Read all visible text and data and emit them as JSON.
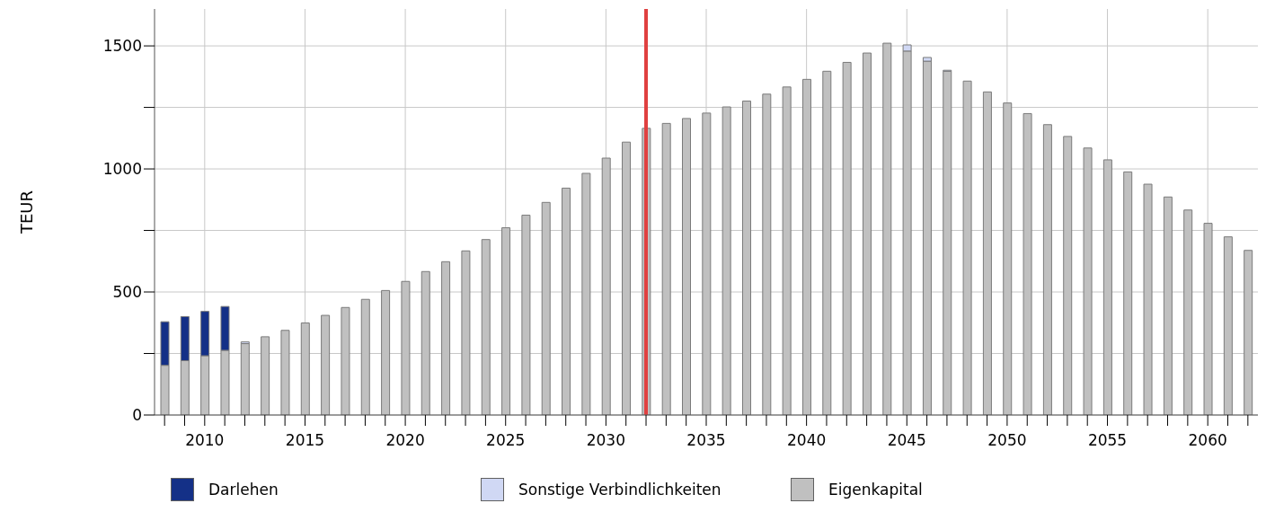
{
  "chart_data": {
    "type": "bar",
    "stacked": true,
    "ylabel": "TEUR",
    "x": [
      2008,
      2009,
      2010,
      2011,
      2012,
      2013,
      2014,
      2015,
      2016,
      2017,
      2018,
      2019,
      2020,
      2021,
      2022,
      2023,
      2024,
      2025,
      2026,
      2027,
      2028,
      2029,
      2030,
      2031,
      2032,
      2033,
      2034,
      2035,
      2036,
      2037,
      2038,
      2039,
      2040,
      2041,
      2042,
      2043,
      2044,
      2045,
      2046,
      2047,
      2048,
      2049,
      2050,
      2051,
      2052,
      2053,
      2054,
      2055,
      2056,
      2057,
      2058,
      2059,
      2060,
      2061,
      2062
    ],
    "series": [
      {
        "name": "Eigenkapital",
        "color": "#c0c0c0",
        "values": [
          202,
          221,
          241,
          263,
          290,
          318,
          344,
          374,
          405,
          437,
          470,
          506,
          543,
          583,
          623,
          667,
          713,
          761,
          812,
          864,
          922,
          982,
          1044,
          1109,
          1165,
          1185,
          1205,
          1227,
          1252,
          1276,
          1304,
          1333,
          1364,
          1397,
          1433,
          1471,
          1511,
          1479,
          1438,
          1397,
          1357,
          1313,
          1268,
          1225,
          1180,
          1132,
          1085,
          1037,
          988,
          938,
          886,
          833,
          779,
          724,
          669
        ]
      },
      {
        "name": "Darlehen",
        "color": "#143087",
        "values": [
          177,
          179,
          180,
          178,
          null,
          null,
          null,
          null,
          null,
          null,
          null,
          null,
          null,
          null,
          null,
          null,
          null,
          null,
          null,
          null,
          null,
          null,
          null,
          null,
          null,
          null,
          null,
          null,
          null,
          null,
          null,
          null,
          null,
          null,
          null,
          null,
          null,
          null,
          null,
          null,
          null,
          null,
          null,
          null,
          null,
          null,
          null,
          null,
          null,
          null,
          null,
          null,
          null,
          null,
          null
        ]
      },
      {
        "name": "Sonstige Verbindlichkeiten",
        "color": "#d0d8f4",
        "values": [
          null,
          null,
          null,
          null,
          7,
          null,
          null,
          null,
          null,
          null,
          null,
          null,
          null,
          null,
          null,
          null,
          null,
          null,
          null,
          null,
          null,
          null,
          null,
          null,
          null,
          null,
          null,
          null,
          null,
          null,
          null,
          null,
          null,
          null,
          null,
          null,
          null,
          25,
          15,
          4,
          null,
          null,
          null,
          null,
          null,
          null,
          null,
          null,
          null,
          null,
          null,
          null,
          null,
          null,
          null
        ]
      }
    ],
    "xlim": [
      2007.5,
      2062.5
    ],
    "xticks": [
      {
        "value": 2008,
        "label": null
      },
      {
        "value": 2009,
        "label": null
      },
      2010,
      {
        "value": 2011,
        "label": null
      },
      {
        "value": 2012,
        "label": null
      },
      {
        "value": 2013,
        "label": null
      },
      {
        "value": 2014,
        "label": null
      },
      2015,
      {
        "value": 2016,
        "label": null
      },
      {
        "value": 2017,
        "label": null
      },
      {
        "value": 2018,
        "label": null
      },
      {
        "value": 2019,
        "label": null
      },
      2020,
      {
        "value": 2021,
        "label": null
      },
      {
        "value": 2022,
        "label": null
      },
      {
        "value": 2023,
        "label": null
      },
      {
        "value": 2024,
        "label": null
      },
      2025,
      {
        "value": 2026,
        "label": null
      },
      {
        "value": 2027,
        "label": null
      },
      {
        "value": 2028,
        "label": null
      },
      {
        "value": 2029,
        "label": null
      },
      2030,
      {
        "value": 2031,
        "label": null
      },
      {
        "value": 2032,
        "label": null
      },
      {
        "value": 2033,
        "label": null
      },
      {
        "value": 2034,
        "label": null
      },
      2035,
      {
        "value": 2036,
        "label": null
      },
      {
        "value": 2037,
        "label": null
      },
      {
        "value": 2038,
        "label": null
      },
      {
        "value": 2039,
        "label": null
      },
      2040,
      {
        "value": 2041,
        "label": null
      },
      {
        "value": 2042,
        "label": null
      },
      {
        "value": 2043,
        "label": null
      },
      {
        "value": 2044,
        "label": null
      },
      2045,
      {
        "value": 2046,
        "label": null
      },
      {
        "value": 2047,
        "label": null
      },
      {
        "value": 2048,
        "label": null
      },
      {
        "value": 2049,
        "label": null
      },
      2050,
      {
        "value": 2051,
        "label": null
      },
      {
        "value": 2052,
        "label": null
      },
      {
        "value": 2053,
        "label": null
      },
      {
        "value": 2054,
        "label": null
      },
      2055,
      {
        "value": 2056,
        "label": null
      },
      {
        "value": 2057,
        "label": null
      },
      {
        "value": 2058,
        "label": null
      },
      {
        "value": 2059,
        "label": null
      },
      2060,
      {
        "value": 2061,
        "label": null
      },
      {
        "value": 2062,
        "label": null
      }
    ],
    "ylim": [
      0,
      1650
    ],
    "yticks": [
      0,
      {
        "value": 250,
        "label": null
      },
      500,
      {
        "value": 750,
        "label": null
      },
      1000,
      {
        "value": 1250,
        "label": null
      },
      1500
    ],
    "ref_lines": [
      {
        "axis": "x",
        "value": 2032,
        "color": "#e04040"
      }
    ],
    "grid": true,
    "legend": "bottom"
  }
}
